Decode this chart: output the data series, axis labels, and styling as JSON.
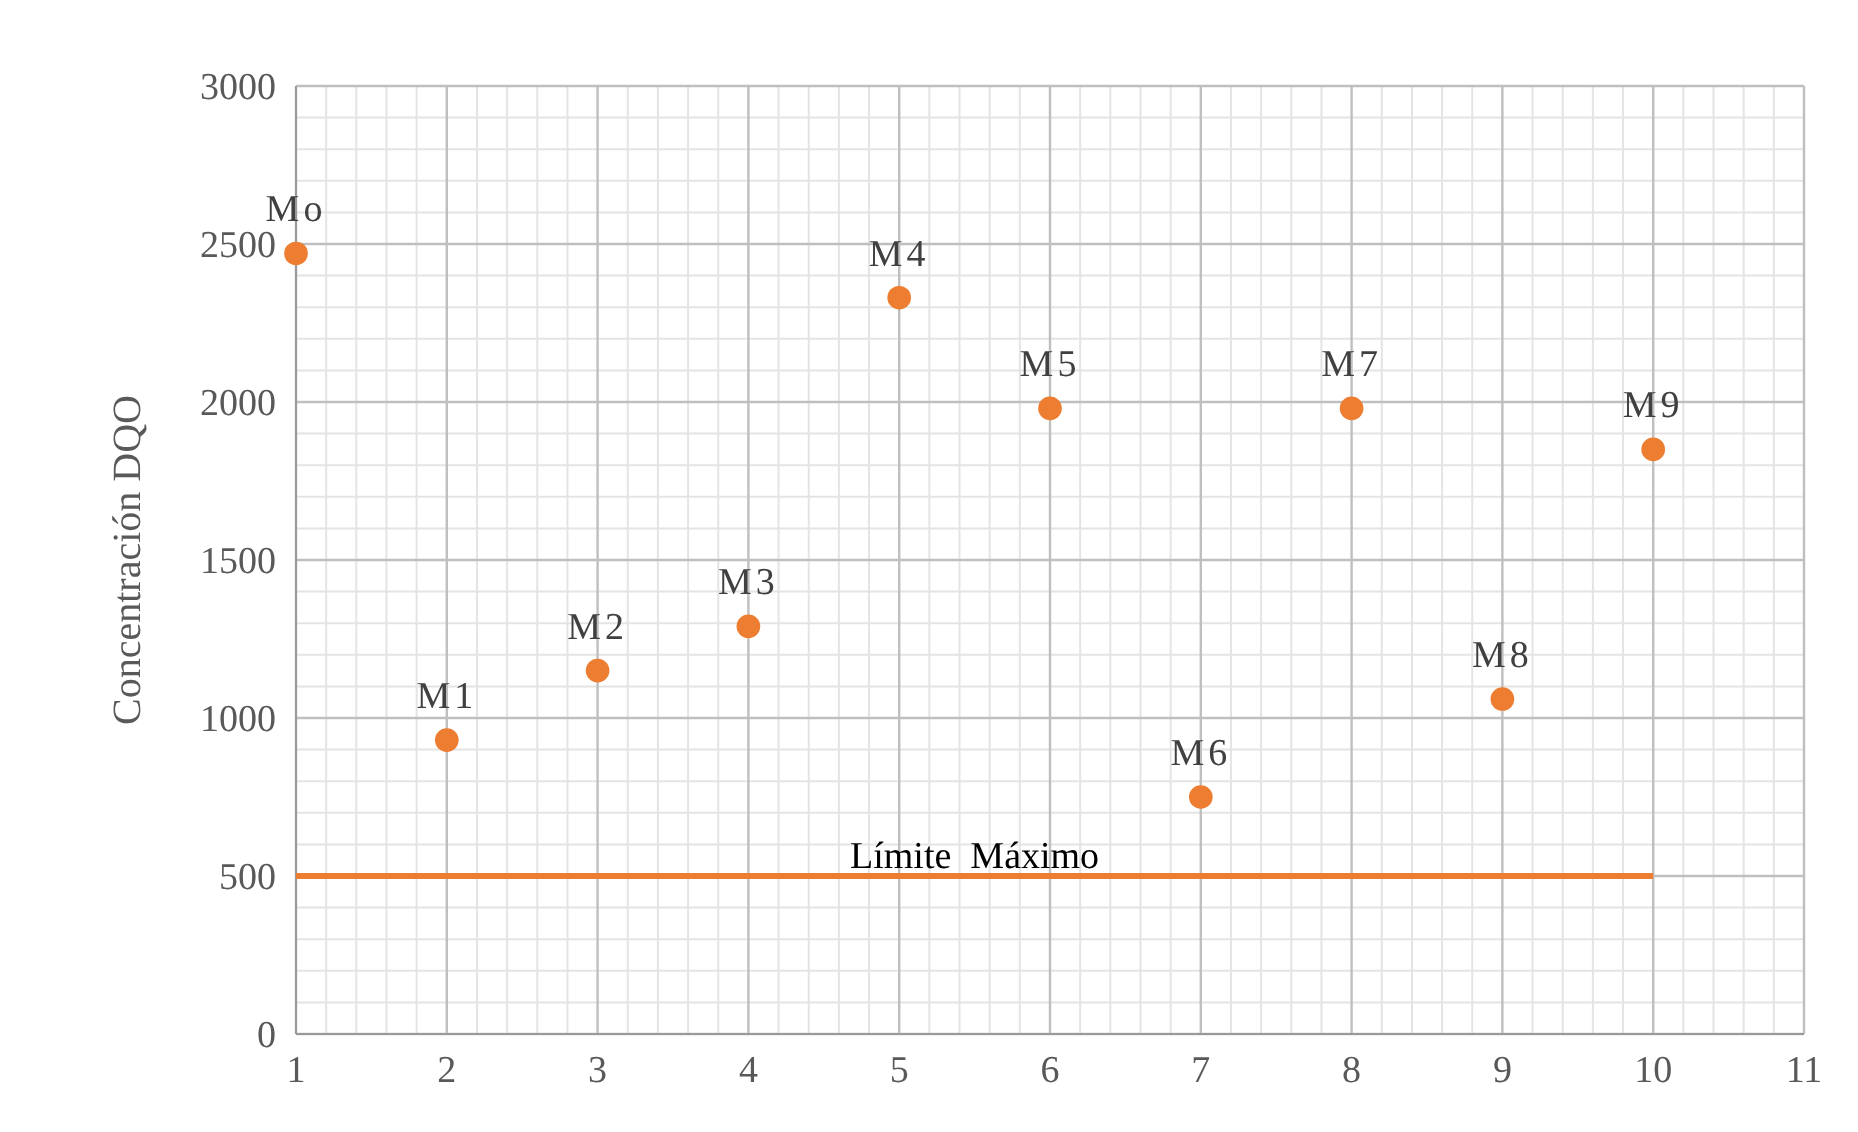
{
  "chart_data": {
    "type": "scatter",
    "ylabel": "Concentración DQO",
    "xlim": [
      1,
      11
    ],
    "xticks": [
      1,
      2,
      3,
      4,
      5,
      6,
      7,
      8,
      9,
      10,
      11
    ],
    "ylim": [
      0,
      3000
    ],
    "yticks": [
      0,
      500,
      1000,
      1500,
      2000,
      2500,
      3000
    ],
    "grid": true,
    "series": [
      {
        "marker": "circle",
        "color": "#ed7d31",
        "x": [
          1,
          2,
          3,
          4,
          5,
          6,
          7,
          8,
          9,
          10
        ],
        "values": [
          2470,
          930,
          1150,
          1290,
          2330,
          1980,
          750,
          1980,
          1060,
          1850
        ]
      },
      {
        "type": "line",
        "name": "Límite  Máximo",
        "color": "#ed7d31",
        "x": [
          1,
          10
        ],
        "values": [
          500,
          500
        ]
      }
    ],
    "annotations": [
      {
        "text": "Mo",
        "x": 1,
        "y": 2470
      },
      {
        "text": "M1",
        "x": 2,
        "y": 930
      },
      {
        "text": "M2",
        "x": 3,
        "y": 1150
      },
      {
        "text": "M3",
        "x": 4,
        "y": 1290
      },
      {
        "text": "M4",
        "x": 5,
        "y": 2330
      },
      {
        "text": "M5",
        "x": 6,
        "y": 1980
      },
      {
        "text": "M6",
        "x": 7,
        "y": 750
      },
      {
        "text": "M7",
        "x": 8,
        "y": 1980
      },
      {
        "text": "M8",
        "x": 9,
        "y": 1060
      },
      {
        "text": "M9",
        "x": 10,
        "y": 1850
      }
    ]
  }
}
